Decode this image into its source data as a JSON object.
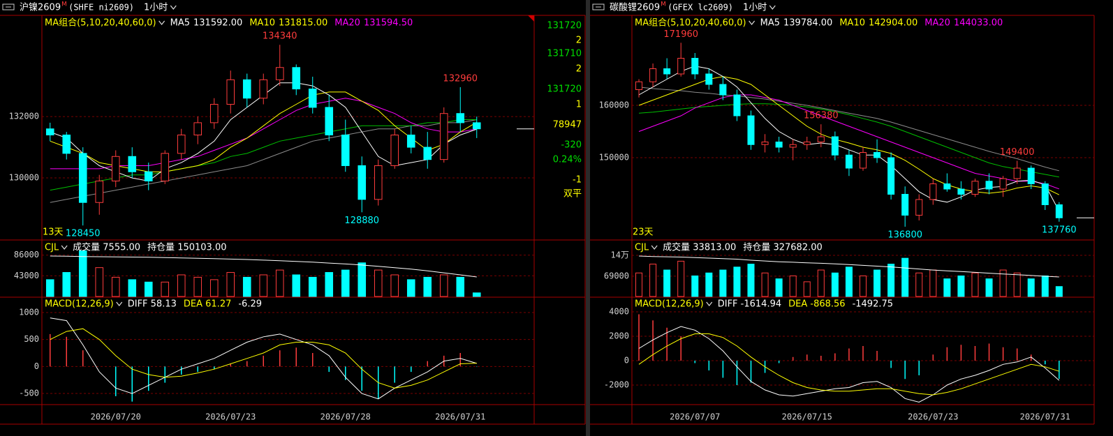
{
  "chart_data": [
    {
      "type": "candlestick",
      "symbol": "沪镍2609",
      "flag": "M",
      "code": "(SHFE ni2609)",
      "period": "1小时",
      "categories": [
        null,
        null,
        null,
        null,
        "2026/07/20",
        null,
        null,
        null,
        null,
        null,
        null,
        "2026/07/23",
        null,
        null,
        null,
        null,
        null,
        null,
        "2026/07/28",
        null,
        null,
        null,
        null,
        null,
        null,
        "2026/07/31",
        null
      ],
      "open": [
        131600,
        131400,
        130800,
        129200,
        129900,
        130700,
        130200,
        129900,
        130800,
        131400,
        131800,
        132400,
        133200,
        132600,
        133200,
        133600,
        132900,
        132300,
        131400,
        130400,
        129300,
        130400,
        131400,
        131000,
        130600,
        132100,
        131800
      ],
      "high": [
        131800,
        131500,
        131000,
        130100,
        130900,
        131000,
        130500,
        130900,
        131600,
        132000,
        132600,
        133500,
        133400,
        133400,
        134340,
        133700,
        133300,
        132700,
        131900,
        130700,
        130600,
        131600,
        131700,
        131500,
        132300,
        132960,
        132000
      ],
      "low": [
        131200,
        130600,
        128450,
        128800,
        129700,
        130000,
        129600,
        129800,
        130600,
        131100,
        131600,
        132100,
        132300,
        132400,
        133000,
        132700,
        132100,
        131200,
        130200,
        128880,
        129100,
        130300,
        130800,
        130300,
        130500,
        131500,
        131300
      ],
      "close": [
        131400,
        130800,
        129200,
        129900,
        130700,
        130200,
        129900,
        130800,
        131400,
        131800,
        132400,
        133200,
        132600,
        133200,
        133600,
        132900,
        132300,
        131400,
        130400,
        129300,
        130400,
        131400,
        131000,
        130600,
        132100,
        131800,
        131600
      ],
      "ma_title": "MA组合(5,10,20,40,60,0)",
      "ma": [
        {
          "name": "MA5",
          "value_label": "131592.00",
          "color": "#ffffff",
          "values": [
            131500,
            131300,
            130800,
            130400,
            130200,
            130000,
            129900,
            130300,
            130500,
            130800,
            131200,
            131900,
            132300,
            132700,
            133100,
            133100,
            133000,
            132700,
            132300,
            131500,
            130700,
            130400,
            130500,
            130600,
            131100,
            131400,
            131592
          ]
        },
        {
          "name": "MA10",
          "value_label": "131815.00",
          "color": "#ffff00",
          "values": [
            131200,
            131000,
            130800,
            130500,
            130400,
            130300,
            130200,
            130200,
            130300,
            130400,
            130600,
            131000,
            131300,
            131700,
            132100,
            132400,
            132700,
            132800,
            132800,
            132500,
            132200,
            131700,
            131300,
            130900,
            131100,
            131500,
            131815
          ]
        },
        {
          "name": "MA20",
          "value_label": "131594.50",
          "color": "#ff00ff",
          "values": [
            130300,
            130300,
            130300,
            130300,
            130400,
            130400,
            130400,
            130500,
            130600,
            130700,
            130900,
            131100,
            131300,
            131600,
            131900,
            132200,
            132400,
            132500,
            132600,
            132500,
            132300,
            132100,
            131800,
            131600,
            131500,
            131500,
            131594.5
          ]
        },
        {
          "color": "#00c000",
          "values": [
            129600,
            129700,
            129800,
            129900,
            130000,
            130100,
            130100,
            130200,
            130300,
            130400,
            130500,
            130700,
            130800,
            131000,
            131200,
            131300,
            131400,
            131500,
            131600,
            131700,
            131700,
            131700,
            131700,
            131800,
            131800,
            131900,
            131900
          ]
        },
        {
          "color": "#8c8c8c",
          "values": [
            129200,
            129300,
            129400,
            129500,
            129600,
            129700,
            129800,
            129900,
            130000,
            130100,
            130200,
            130300,
            130400,
            130600,
            130800,
            131000,
            131200,
            131300,
            131400,
            131500,
            131600,
            131600,
            131700,
            131700,
            131800,
            131800,
            131900
          ]
        }
      ],
      "ylim": [
        128000,
        135300
      ],
      "yticks": [
        130000,
        132000
      ],
      "highs": [
        134340,
        132960
      ],
      "lows": [
        128880,
        128450
      ],
      "days": "13天",
      "side": [
        131720,
        2,
        131710,
        2,
        131720,
        1,
        78947,
        -320,
        {
          "value": 0.24,
          "label": "0.24%"
        },
        -1,
        "双平"
      ],
      "volume": {
        "title": "CJL",
        "labels": [
          "成交量 7555.00",
          "持仓量 150103.00"
        ],
        "values": [
          35000,
          50000,
          95000,
          60000,
          40000,
          35000,
          30000,
          30000,
          45000,
          40000,
          35000,
          50000,
          40000,
          45000,
          55000,
          45000,
          40000,
          50000,
          55000,
          70000,
          55000,
          45000,
          35000,
          40000,
          45000,
          40000,
          7555
        ],
        "open_interest": [
          168000,
          167800,
          167500,
          167400,
          167300,
          167100,
          166900,
          166700,
          166400,
          166100,
          165800,
          165400,
          165000,
          164500,
          164000,
          163400,
          162800,
          162000,
          161200,
          160300,
          159200,
          158000,
          156800,
          155300,
          153600,
          151900,
          150103
        ],
        "ylim": [
          0,
          116100
        ],
        "yticks": [
          43000,
          86000
        ]
      },
      "macd": {
        "title": "MACD(12,26,9)",
        "labels": [
          "DIFF 58.13",
          "DEA 61.27",
          "-6.29"
        ],
        "hist": [
          600,
          550,
          300,
          0,
          -550,
          -650,
          -450,
          -300,
          -150,
          -100,
          -50,
          50,
          100,
          200,
          300,
          350,
          250,
          -100,
          -250,
          -450,
          -600,
          -300,
          -100,
          100,
          200,
          250,
          -6.29
        ],
        "diff": [
          900,
          850,
          400,
          -100,
          -400,
          -500,
          -350,
          -200,
          -50,
          50,
          150,
          300,
          450,
          550,
          600,
          500,
          400,
          200,
          -200,
          -500,
          -600,
          -400,
          -250,
          -100,
          100,
          150,
          58.13
        ],
        "dea": [
          500,
          650,
          700,
          500,
          200,
          -50,
          -150,
          -200,
          -180,
          -120,
          -50,
          50,
          150,
          250,
          400,
          450,
          450,
          400,
          250,
          -50,
          -300,
          -400,
          -350,
          -250,
          -100,
          50,
          61.27
        ],
        "ylim": [
          -706,
          1258
        ],
        "yticks": [
          -500,
          0,
          500,
          1000
        ]
      }
    },
    {
      "type": "candlestick",
      "symbol": "碳酸锂2609",
      "flag": "M",
      "code": "(GFEX lc2609)",
      "period": "1小时",
      "categories": [
        null,
        null,
        null,
        null,
        "2026/07/07",
        null,
        null,
        null,
        null,
        null,
        null,
        null,
        "2026/07/15",
        null,
        null,
        null,
        null,
        null,
        null,
        null,
        null,
        "2026/07/23",
        null,
        null,
        null,
        null,
        null,
        null,
        null,
        "2026/07/31",
        null
      ],
      "open": [
        163000,
        164500,
        167000,
        166000,
        169000,
        166000,
        164000,
        162000,
        158000,
        152500,
        153000,
        152000,
        152500,
        153000,
        154000,
        150500,
        148000,
        151000,
        150000,
        143000,
        139000,
        142000,
        145000,
        144000,
        143000,
        145500,
        144000,
        146000,
        148000,
        145000,
        141000
      ],
      "high": [
        165000,
        168000,
        169000,
        171960,
        170000,
        167000,
        165500,
        163000,
        159000,
        154500,
        154000,
        153500,
        154000,
        156380,
        155000,
        151500,
        152000,
        153500,
        151000,
        144500,
        143000,
        146000,
        147000,
        145500,
        146000,
        147000,
        146500,
        149400,
        148500,
        145500,
        141500
      ],
      "low": [
        161500,
        163500,
        165000,
        165500,
        165000,
        163000,
        161000,
        157000,
        151500,
        151000,
        151000,
        149500,
        151500,
        152000,
        149500,
        146500,
        147500,
        149000,
        142000,
        136800,
        138000,
        141000,
        143500,
        142000,
        142500,
        143000,
        142500,
        145000,
        144000,
        140000,
        137760
      ],
      "close": [
        164500,
        167000,
        166000,
        169000,
        166000,
        164000,
        162000,
        158000,
        152500,
        153000,
        152000,
        152500,
        153000,
        154000,
        150500,
        148000,
        151000,
        150000,
        143000,
        139000,
        142000,
        145000,
        144000,
        143000,
        145500,
        144000,
        146000,
        148000,
        145000,
        141000,
        138500
      ],
      "ma_title": "MA组合(5,10,20,40,60,0)",
      "ma": [
        {
          "name": "MA5",
          "value_label": "139784.00",
          "color": "#ffffff",
          "values": [
            162000,
            163500,
            165000,
            166500,
            167500,
            167000,
            165500,
            163500,
            160500,
            157500,
            155000,
            153500,
            152500,
            152800,
            152500,
            151500,
            150500,
            150500,
            148500,
            146000,
            143500,
            142000,
            141500,
            142500,
            143800,
            144300,
            144500,
            145500,
            145700,
            144800,
            139784
          ]
        },
        {
          "name": "MA10",
          "value_label": "142904.00",
          "color": "#ffff00",
          "values": [
            160000,
            161000,
            162000,
            163000,
            164000,
            165000,
            165500,
            165000,
            164000,
            162000,
            160000,
            158000,
            156000,
            154500,
            153500,
            152800,
            152000,
            151500,
            150800,
            149500,
            147800,
            146000,
            144800,
            144000,
            143500,
            143200,
            143500,
            144200,
            144600,
            144200,
            142904
          ]
        },
        {
          "name": "MA20",
          "value_label": "144033.00",
          "color": "#ff00ff",
          "values": [
            155000,
            156000,
            157000,
            158000,
            159500,
            160500,
            161500,
            162000,
            162000,
            161500,
            161000,
            160000,
            159000,
            158000,
            157000,
            156000,
            155000,
            154000,
            153000,
            152000,
            151000,
            150000,
            149000,
            148000,
            147000,
            146500,
            146000,
            145500,
            145500,
            145000,
            144033
          ]
        },
        {
          "color": "#00c000",
          "values": [
            158500,
            158700,
            159000,
            159300,
            159600,
            159800,
            160000,
            160200,
            160300,
            160300,
            160200,
            160000,
            159700,
            159300,
            158800,
            158200,
            157500,
            156800,
            156000,
            155000,
            154000,
            153000,
            152000,
            151000,
            150000,
            149000,
            148300,
            147800,
            147300,
            146800,
            146300
          ]
        },
        {
          "color": "#8c8c8c",
          "values": [
            163500,
            163200,
            163000,
            162800,
            162500,
            162300,
            162000,
            161800,
            161500,
            161200,
            160800,
            160400,
            160000,
            159500,
            159000,
            158500,
            158000,
            157500,
            156800,
            156000,
            155200,
            154400,
            153600,
            152800,
            152000,
            151200,
            150500,
            149800,
            149000,
            148200,
            147500
          ]
        }
      ],
      "ylim": [
        134400,
        177200
      ],
      "yticks": [
        150000,
        160000
      ],
      "highs": [
        171960,
        156380,
        149400
      ],
      "lows": [
        136800,
        137760
      ],
      "days": "23天",
      "volume": {
        "title": "CJL",
        "labels": [
          "成交量 33813.00",
          "持仓量 327682.00"
        ],
        "values": [
          80000,
          110000,
          90000,
          120000,
          70000,
          80000,
          90000,
          100000,
          110000,
          80000,
          60000,
          70000,
          50000,
          90000,
          80000,
          100000,
          70000,
          90000,
          110000,
          130000,
          80000,
          90000,
          60000,
          70000,
          80000,
          60000,
          90000,
          80000,
          60000,
          70000,
          33813
        ],
        "open_interest": [
          368000,
          367000,
          366500,
          366000,
          365000,
          364000,
          363000,
          362000,
          360000,
          358500,
          357000,
          356000,
          355000,
          354000,
          353000,
          351500,
          350000,
          348500,
          347000,
          345000,
          343000,
          341000,
          339500,
          338000,
          336500,
          335000,
          333500,
          332000,
          330500,
          329000,
          327682
        ],
        "ylim": [
          0,
          189700
        ],
        "yticks": [
          69000,
          {
            "value": 140000,
            "label": "14万"
          }
        ]
      },
      "macd": {
        "title": "MACD(12,26,9)",
        "labels": [
          "DIFF -1614.94",
          "DEA -868.56",
          "-1492.75"
        ],
        "hist": [
          3800,
          3300,
          2700,
          2000,
          -200,
          -800,
          -1400,
          -2000,
          -1800,
          -1000,
          -200,
          300,
          500,
          400,
          600,
          1000,
          1200,
          800,
          -600,
          -1500,
          -1200,
          500,
          1100,
          1300,
          1200,
          1400,
          1100,
          1000,
          500,
          -300,
          -1492.75
        ],
        "diff": [
          1000,
          1700,
          2300,
          2800,
          2500,
          1800,
          800,
          -500,
          -1700,
          -2400,
          -2800,
          -2900,
          -2700,
          -2500,
          -2300,
          -2200,
          -1800,
          -1700,
          -2200,
          -3100,
          -3400,
          -2800,
          -2000,
          -1500,
          -1200,
          -800,
          -300,
          -100,
          300,
          -600,
          -1614.94
        ],
        "dea": [
          -300,
          500,
          1200,
          1800,
          2200,
          2200,
          1900,
          1200,
          300,
          -500,
          -1200,
          -1800,
          -2200,
          -2400,
          -2500,
          -2500,
          -2400,
          -2300,
          -2300,
          -2500,
          -2700,
          -2800,
          -2600,
          -2300,
          -1900,
          -1500,
          -1100,
          -700,
          -300,
          -500,
          -868.56
        ],
        "ylim": [
          -3600,
          5086
        ],
        "yticks": [
          -2000,
          0,
          2000,
          4000
        ]
      }
    }
  ]
}
